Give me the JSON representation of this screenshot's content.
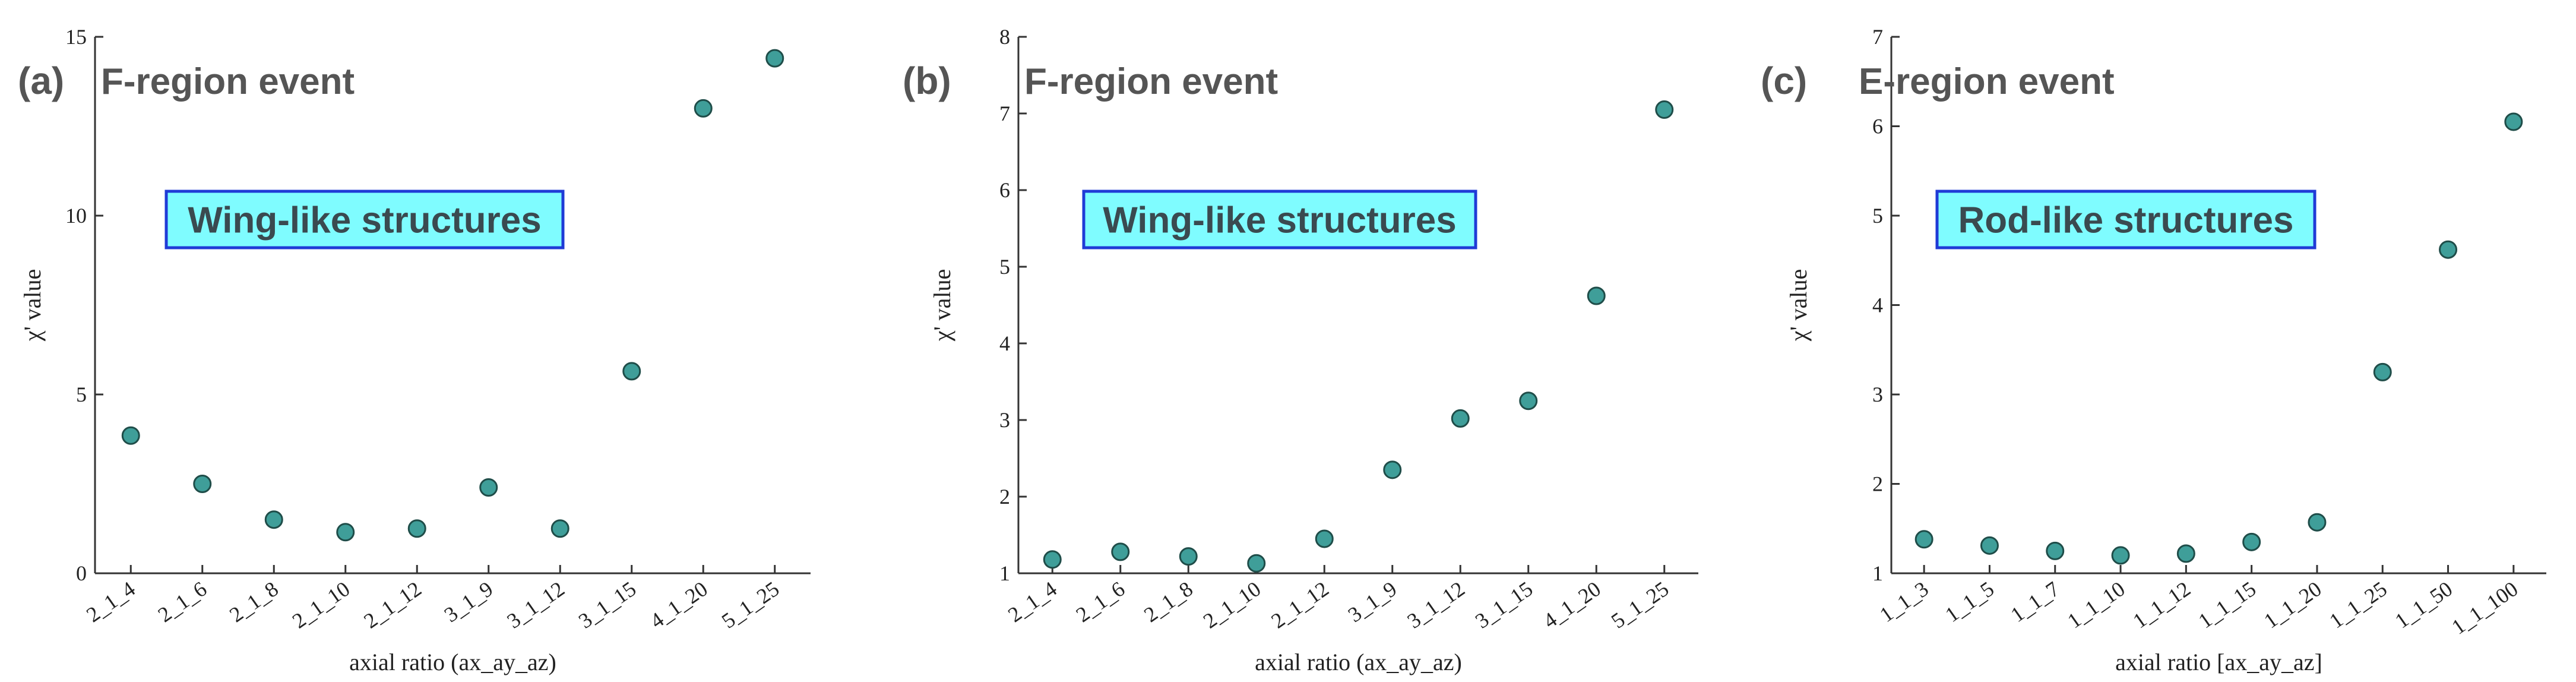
{
  "chart_data": [
    {
      "type": "scatter",
      "panel_label": "(a)",
      "title": "F-region event",
      "annotation": "Wing-like structures",
      "categories": [
        "2_1_4",
        "2_1_6",
        "2_1_8",
        "2_1_10",
        "2_1_12",
        "3_1_9",
        "3_1_12",
        "3_1_15",
        "4_1_20",
        "5_1_25"
      ],
      "values": [
        3.85,
        2.5,
        1.5,
        1.15,
        1.25,
        2.4,
        1.25,
        5.65,
        13.0,
        14.4
      ],
      "xlabel": "axial ratio (ax_ay_az)",
      "ylabel": "χ' value",
      "ylim": [
        0,
        15
      ],
      "yticks": [
        0,
        5,
        10,
        15
      ],
      "grid": false,
      "marker_color": "#3f9e99"
    },
    {
      "type": "scatter",
      "panel_label": "(b)",
      "title": "F-region event",
      "annotation": "Wing-like structures",
      "categories": [
        "2_1_4",
        "2_1_6",
        "2_1_8",
        "2_1_10",
        "2_1_12",
        "3_1_9",
        "3_1_12",
        "3_1_15",
        "4_1_20",
        "5_1_25"
      ],
      "values": [
        1.18,
        1.28,
        1.22,
        1.13,
        1.45,
        2.35,
        3.02,
        3.25,
        4.62,
        7.05
      ],
      "xlabel": "axial ratio (ax_ay_az)",
      "ylabel": "χ' value",
      "ylim": [
        1,
        8
      ],
      "yticks": [
        1,
        2,
        3,
        4,
        5,
        6,
        7,
        8
      ],
      "grid": false,
      "marker_color": "#3f9e99"
    },
    {
      "type": "scatter",
      "panel_label": "(c)",
      "title": "E-region event",
      "annotation": "Rod-like structures",
      "categories": [
        "1_1_3",
        "1_1_5",
        "1_1_7",
        "1_1_10",
        "1_1_12",
        "1_1_15",
        "1_1_20",
        "1_1_25",
        "1_1_50",
        "1_1_100"
      ],
      "values": [
        1.38,
        1.31,
        1.25,
        1.2,
        1.22,
        1.35,
        1.57,
        3.25,
        4.62,
        6.05
      ],
      "xlabel": "axial ratio [ax_ay_az]",
      "ylabel": "χ' value",
      "ylim": [
        1,
        7
      ],
      "yticks": [
        1,
        2,
        3,
        4,
        5,
        6,
        7
      ],
      "grid": false,
      "marker_color": "#3f9e99"
    }
  ]
}
